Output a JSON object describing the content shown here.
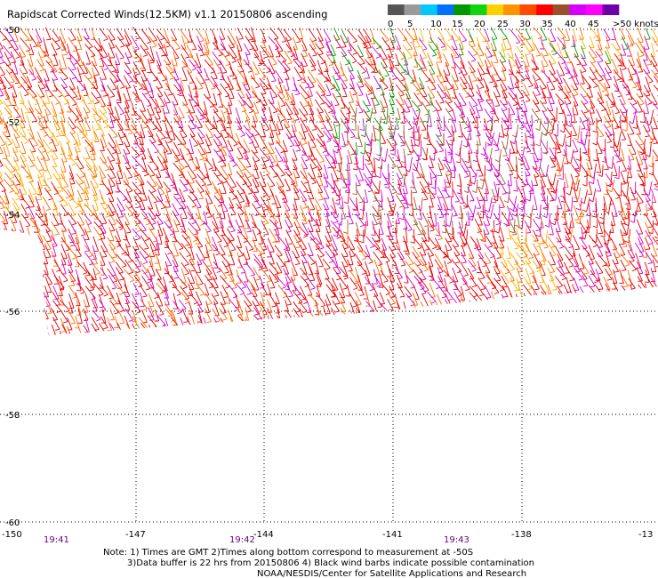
{
  "title": "Rapidscat Corrected Winds(12.5KM) v1.1 20150806 ascending",
  "legend": {
    "colors": [
      "#555555",
      "#9a9a9a",
      "#00c8ff",
      "#0070ff",
      "#009a00",
      "#0fd60f",
      "#ffd000",
      "#ff9400",
      "#ff4a00",
      "#ff0000",
      "#9a5028",
      "#d600ff",
      "#ff00ff",
      "#6c00a8"
    ],
    "labels": [
      "0",
      "5",
      "10",
      "15",
      "20",
      "25",
      "30",
      "35",
      "40",
      "45",
      ">50 knots"
    ]
  },
  "lat_labels": [
    "-50",
    "-52",
    "-54",
    "-56",
    "-58",
    "-60"
  ],
  "lon_labels": [
    "-150",
    "-147",
    "-144",
    "-141",
    "-138",
    "-13"
  ],
  "times": [
    "19:41",
    "19:42",
    "19:43"
  ],
  "notes": [
    "Note: 1) Times are GMT 2)Times along bottom correspond to measurement at -50S",
    "3)Data buffer is 22 hrs from 20150806 4) Black wind barbs indicate possible contamination",
    "NOAA/NESDIS/Center for Satellite Applications and Research"
  ]
}
